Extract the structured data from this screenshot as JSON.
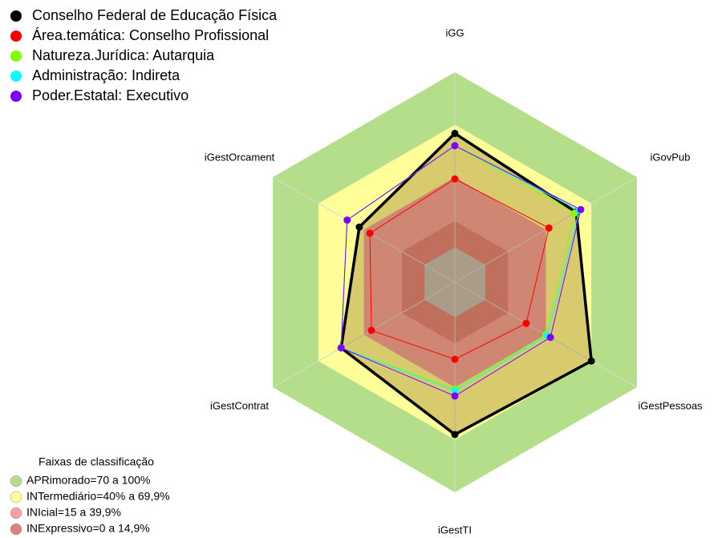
{
  "chart_data": {
    "type": "radar",
    "categories": [
      "iGG",
      "iGovPub",
      "iGestPessoas",
      "iGestTI",
      "iGestContrat",
      "iGestOrcament"
    ],
    "ylim": [
      -20,
      100
    ],
    "series": [
      {
        "name": "Conselho Federal de Educação Física",
        "color": "#000000",
        "values": [
          65,
          60,
          70,
          67,
          55,
          43
        ]
      },
      {
        "name": "Área.temática: Conselho Profissional",
        "color": "#ff0000",
        "values": [
          39,
          42,
          27,
          24,
          35,
          36
        ]
      },
      {
        "name": "Natureza.Jurídica: Autarquia",
        "color": "#7fff00",
        "values": [
          58,
          59,
          40,
          41,
          55,
          51
        ]
      },
      {
        "name": "Administração: Indireta",
        "color": "#00ffff",
        "values": [
          58,
          62,
          41,
          42,
          55,
          51
        ]
      },
      {
        "name": "Poder.Estatal: Executivo",
        "color": "#8000ff",
        "values": [
          58,
          63,
          43,
          45,
          55,
          51
        ]
      }
    ],
    "bands_title": "Faixas de classificação",
    "bands": [
      {
        "label": "APRimorado=70 a 100%",
        "from": 70,
        "to": 100,
        "color": "#b5de8a"
      },
      {
        "label": "INTermediário=40% a 69,9%",
        "from": 40,
        "to": 70,
        "color": "#ffff99"
      },
      {
        "label": "INIcial=15 a 39,9%",
        "from": 15,
        "to": 40,
        "color": "#f4a0a0"
      },
      {
        "label": "INExpressivo=0 a 14,9%",
        "from": 0,
        "to": 15,
        "color": "#e08080"
      }
    ]
  }
}
